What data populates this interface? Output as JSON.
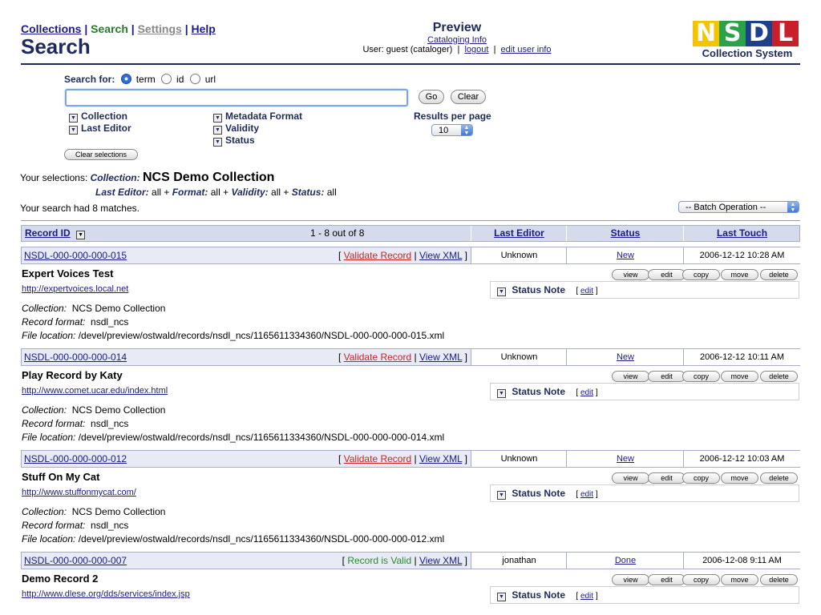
{
  "nav": {
    "collections": "Collections",
    "sep1": "|",
    "search": "Search",
    "sep2": "|",
    "settings": "Settings",
    "sep3": "|",
    "help": "Help"
  },
  "page_title": "Search",
  "preview": {
    "title": "Preview",
    "cataloging_info": "Cataloging Info",
    "user_text": "User: guest (cataloger)",
    "bar1": "|",
    "logout": "logout",
    "bar2": "|",
    "edit_user_info": "edit user info"
  },
  "logo": {
    "letters": [
      "N",
      "S",
      "D",
      "L"
    ],
    "colors": [
      "#f2c500",
      "#2aa24a",
      "#1e3f8a",
      "#c8202a"
    ],
    "subtitle": "Collection System"
  },
  "search": {
    "label": "Search for:",
    "options": [
      "term",
      "id",
      "url"
    ],
    "selected": "term",
    "value": "",
    "go": "Go",
    "clear": "Clear",
    "facets_col1": [
      "Collection",
      "Last Editor"
    ],
    "facets_col2": [
      "Metadata Format",
      "Validity",
      "Status"
    ],
    "results_per_page_label": "Results per page",
    "results_per_page": "10",
    "clear_selections": "Clear selections"
  },
  "selections": {
    "label": "Your selections:",
    "collection_label": "Collection:",
    "collection_value": "NCS Demo Collection",
    "last_editor_label": "Last Editor:",
    "last_editor_value": "all +",
    "format_label": "Format:",
    "format_value": "all +",
    "validity_label": "Validity:",
    "validity_value": "all +",
    "status_label": "Status:",
    "status_value": "all"
  },
  "matches": "Your search had 8 matches.",
  "batch_operation": "-- Batch Operation --",
  "table": {
    "record_id": "Record ID",
    "range": "1 - 8 out of 8",
    "last_editor": "Last Editor",
    "status": "Status",
    "last_touch": "Last Touch"
  },
  "actions": [
    "view",
    "edit",
    "copy",
    "move",
    "delete"
  ],
  "status_note_label": "Status Note",
  "status_note_edit": "edit",
  "labels": {
    "collection": "Collection:",
    "record_format": "Record format:",
    "file_location": "File location:",
    "view_xml": "View XML",
    "lb": "[",
    "rb": "]",
    "pipe": "|"
  },
  "records": [
    {
      "id": "NSDL-000-000-000-015",
      "validation": "Validate Record",
      "valid": false,
      "editor": "Unknown",
      "status": "New",
      "touch": "2006-12-12 10:28 AM",
      "title": "Expert Voices Test",
      "url": "http://expertvoices.local.net",
      "collection": "NCS Demo Collection",
      "format": "nsdl_ncs",
      "file": "/devel/preview/ostwald/records/nsdl_ncs/1165611334360/NSDL-000-000-000-015.xml"
    },
    {
      "id": "NSDL-000-000-000-014",
      "validation": "Validate Record",
      "valid": false,
      "editor": "Unknown",
      "status": "New",
      "touch": "2006-12-12 10:11 AM",
      "title": "Play Record by Katy",
      "url": "http://www.comet.ucar.edu/index.html",
      "collection": "NCS Demo Collection",
      "format": "nsdl_ncs",
      "file": "/devel/preview/ostwald/records/nsdl_ncs/1165611334360/NSDL-000-000-000-014.xml"
    },
    {
      "id": "NSDL-000-000-000-012",
      "validation": "Validate Record",
      "valid": false,
      "editor": "Unknown",
      "status": "New",
      "touch": "2006-12-12 10:03 AM",
      "title": "Stuff On My Cat",
      "url": "http://www.stuffonmycat.com/",
      "collection": "NCS Demo Collection",
      "format": "nsdl_ncs",
      "file": "/devel/preview/ostwald/records/nsdl_ncs/1165611334360/NSDL-000-000-000-012.xml"
    },
    {
      "id": "NSDL-000-000-000-007",
      "validation": "Record is Valid",
      "valid": true,
      "editor": "jonathan",
      "status": "Done",
      "touch": "2006-12-08 9:11 AM",
      "title": "Demo Record 2",
      "url": "http://www.dlese.org/dds/services/index.jsp",
      "collection": "",
      "format": "",
      "file": ""
    }
  ]
}
